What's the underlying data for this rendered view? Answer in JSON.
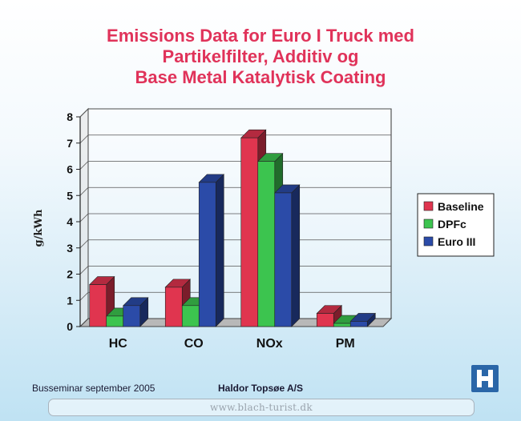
{
  "title_lines": [
    "Emissions Data for Euro I Truck med",
    "Partikelfilter, Additiv og",
    "Base Metal Katalytisk Coating"
  ],
  "chart_data": {
    "type": "bar",
    "title": "Emissions Data for Euro I Truck med Partikelfilter, Additiv og Base Metal Katalytisk Coating",
    "xlabel": "",
    "ylabel": "g/kWh",
    "ylim": [
      0,
      8
    ],
    "yticks": [
      "0",
      "1",
      "2",
      "3",
      "4",
      "5",
      "6",
      "7",
      "8"
    ],
    "categories": [
      "HC",
      "CO",
      "NOx",
      "PM"
    ],
    "series": [
      {
        "name": "Baseline",
        "color": "#e0354f",
        "values": [
          1.6,
          1.5,
          7.2,
          0.5
        ]
      },
      {
        "name": "DPFc",
        "color": "#3cc44f",
        "values": [
          0.4,
          0.8,
          6.3,
          0.12
        ]
      },
      {
        "name": "Euro III",
        "color": "#2b4ba8",
        "values": [
          0.8,
          5.5,
          5.1,
          0.2
        ]
      }
    ],
    "grid": true,
    "legend_position": "right"
  },
  "footer": {
    "left": "Busseminar september 2005",
    "center": "Haldor Topsøe A/S"
  },
  "logo_icon": "haldor-topsoe-logo-icon",
  "watermark": "www.blach-turist.dk"
}
